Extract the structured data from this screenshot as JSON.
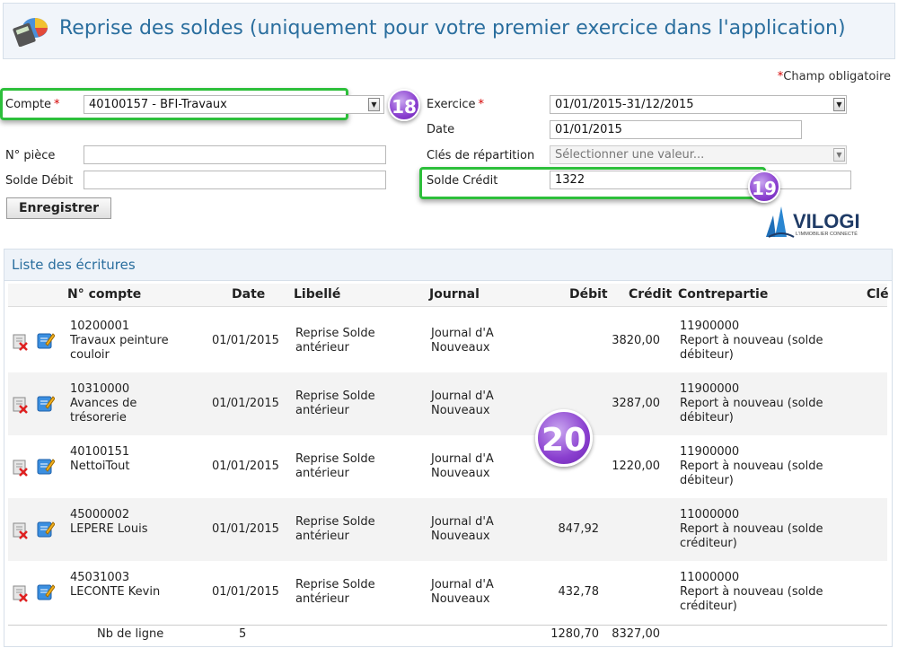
{
  "header": {
    "title": "Reprise des soldes (uniquement pour votre premier exercice dans l'application)"
  },
  "required_note": {
    "star": "*",
    "text": "Champ obligatoire"
  },
  "form": {
    "compte_label": "Compte",
    "compte_value": "40100157 - BFI-Travaux",
    "exercice_label": "Exercice",
    "exercice_value": "01/01/2015-31/12/2015",
    "date_label": "Date",
    "date_value": "01/01/2015",
    "piece_label": "N° pièce",
    "piece_value": "",
    "cles_label": "Clés de répartition",
    "cles_placeholder": "Sélectionner une valeur...",
    "debit_label": "Solde Débit",
    "debit_value": "",
    "credit_label": "Solde Crédit",
    "credit_value": "1322",
    "required_star": "*",
    "save_label": "Enregistrer"
  },
  "badges": {
    "b18": "18",
    "b19": "19",
    "b20": "20"
  },
  "logo": {
    "name": "VILOGI",
    "tagline": "L'IMMOBILIER CONNECTÉ"
  },
  "list": {
    "title": "Liste des écritures",
    "columns": {
      "compte": "N° compte",
      "date": "Date",
      "libelle": "Libellé",
      "journal": "Journal",
      "debit": "Débit",
      "credit": "Crédit",
      "contrepartie": "Contrepartie",
      "cle": "Clé"
    },
    "rows": [
      {
        "compte_num": "10200001",
        "compte_name": "Travaux peinture couloir",
        "date": "01/01/2015",
        "libelle": "Reprise Solde antérieur",
        "journal": "Journal d'A Nouveaux",
        "debit": "",
        "credit": "3820,00",
        "contre_num": "11900000",
        "contre_name": "Report à nouveau (solde débiteur)"
      },
      {
        "compte_num": "10310000",
        "compte_name": "Avances de trésorerie",
        "date": "01/01/2015",
        "libelle": "Reprise Solde antérieur",
        "journal": "Journal d'A Nouveaux",
        "debit": "",
        "credit": "3287,00",
        "contre_num": "11900000",
        "contre_name": "Report à nouveau (solde débiteur)"
      },
      {
        "compte_num": "40100151",
        "compte_name": "NettoiTout",
        "date": "01/01/2015",
        "libelle": "Reprise Solde antérieur",
        "journal": "Journal d'A Nouveaux",
        "debit": "",
        "credit": "1220,00",
        "contre_num": "11900000",
        "contre_name": "Report à nouveau (solde débiteur)"
      },
      {
        "compte_num": "45000002",
        "compte_name": "LEPERE Louis",
        "date": "01/01/2015",
        "libelle": "Reprise Solde antérieur",
        "journal": "Journal d'A Nouveaux",
        "debit": "847,92",
        "credit": "",
        "contre_num": "11000000",
        "contre_name": "Report à nouveau (solde créditeur)"
      },
      {
        "compte_num": "45031003",
        "compte_name": "LECONTE Kevin",
        "date": "01/01/2015",
        "libelle": "Reprise Solde antérieur",
        "journal": "Journal d'A Nouveaux",
        "debit": "432,78",
        "credit": "",
        "contre_num": "11000000",
        "contre_name": "Report à nouveau (solde créditeur)"
      }
    ],
    "footer": {
      "label": "Nb de ligne",
      "count": "5",
      "debit_total": "1280,70",
      "credit_total": "8327,00"
    }
  }
}
